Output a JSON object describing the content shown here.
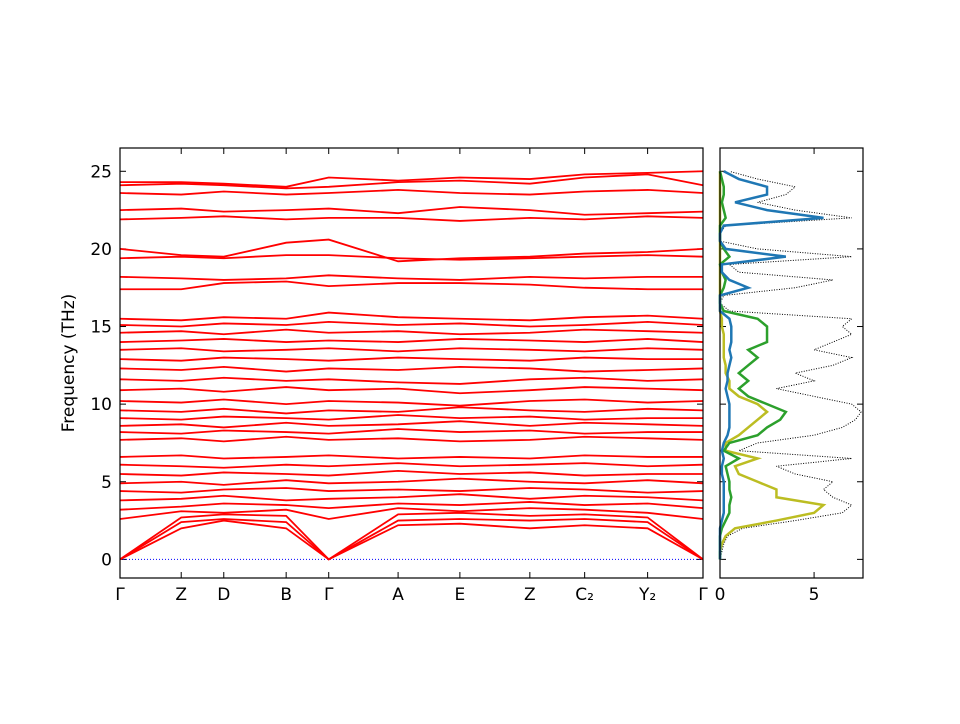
{
  "chart_data": [
    {
      "type": "band",
      "ylabel": "Frequency (THz)",
      "x": [
        0,
        0.105,
        0.178,
        0.285,
        0.358,
        0.477,
        0.583,
        0.703,
        0.797,
        0.905,
        1.0
      ],
      "xlim": [
        0,
        1.0
      ],
      "xticks": [
        {
          "value": 0,
          "label": "Γ"
        },
        {
          "value": 0.105,
          "label": "Z"
        },
        {
          "value": 0.178,
          "label": "D"
        },
        {
          "value": 0.285,
          "label": "B"
        },
        {
          "value": 0.358,
          "label": "Γ"
        },
        {
          "value": 0.477,
          "label": "A"
        },
        {
          "value": 0.583,
          "label": "E"
        },
        {
          "value": 0.703,
          "label": "Z"
        },
        {
          "value": 0.797,
          "label": "C₂"
        },
        {
          "value": 0.905,
          "label": "Y₂"
        },
        {
          "value": 1.0,
          "label": "Γ"
        }
      ],
      "ylim": [
        -1.2,
        26.5
      ],
      "yticks": [
        0,
        5,
        10,
        15,
        20,
        25
      ],
      "zero_line_color": "#0000ff",
      "series": [
        {
          "color": "#ff0000",
          "values": [
            0,
            2.0,
            2.5,
            2.0,
            0,
            2.2,
            2.3,
            2.0,
            2.2,
            2.0,
            0
          ]
        },
        {
          "color": "#ff0000",
          "values": [
            0,
            2.4,
            2.6,
            2.4,
            0,
            2.5,
            2.6,
            2.5,
            2.6,
            2.4,
            0
          ]
        },
        {
          "color": "#ff0000",
          "values": [
            0,
            2.7,
            2.9,
            2.8,
            0,
            2.9,
            3.0,
            2.8,
            2.9,
            2.7,
            0
          ]
        },
        {
          "color": "#ff0000",
          "values": [
            2.6,
            3.1,
            3.0,
            3.2,
            2.6,
            3.3,
            3.1,
            3.3,
            3.2,
            3.0,
            2.6
          ]
        },
        {
          "color": "#ff0000",
          "values": [
            3.2,
            3.4,
            3.6,
            3.5,
            3.3,
            3.6,
            3.5,
            3.7,
            3.5,
            3.6,
            3.3
          ]
        },
        {
          "color": "#ff0000",
          "values": [
            3.8,
            3.9,
            4.1,
            3.8,
            3.9,
            4.0,
            4.2,
            3.9,
            4.1,
            4.0,
            3.8
          ]
        },
        {
          "color": "#ff0000",
          "values": [
            4.4,
            4.3,
            4.5,
            4.6,
            4.4,
            4.5,
            4.4,
            4.6,
            4.5,
            4.3,
            4.4
          ]
        },
        {
          "color": "#ff0000",
          "values": [
            4.9,
            5.0,
            4.8,
            5.1,
            4.9,
            5.0,
            5.2,
            5.0,
            4.9,
            5.1,
            4.9
          ]
        },
        {
          "color": "#ff0000",
          "values": [
            5.5,
            5.4,
            5.6,
            5.5,
            5.4,
            5.7,
            5.5,
            5.6,
            5.4,
            5.5,
            5.5
          ]
        },
        {
          "color": "#ff0000",
          "values": [
            6.1,
            6.0,
            5.9,
            6.1,
            6.0,
            6.2,
            6.0,
            6.1,
            6.2,
            6.0,
            6.1
          ]
        },
        {
          "color": "#ff0000",
          "values": [
            6.6,
            6.7,
            6.5,
            6.6,
            6.7,
            6.5,
            6.6,
            6.5,
            6.7,
            6.6,
            6.6
          ]
        },
        {
          "color": "#ff0000",
          "values": [
            7.7,
            7.8,
            7.6,
            7.9,
            7.7,
            7.8,
            7.6,
            7.7,
            7.9,
            7.8,
            7.7
          ]
        },
        {
          "color": "#ff0000",
          "values": [
            8.2,
            8.1,
            8.3,
            8.2,
            8.1,
            8.4,
            8.2,
            8.3,
            8.1,
            8.2,
            8.2
          ]
        },
        {
          "color": "#ff0000",
          "values": [
            8.6,
            8.7,
            8.5,
            8.8,
            8.6,
            8.7,
            8.9,
            8.6,
            8.8,
            8.7,
            8.6
          ]
        },
        {
          "color": "#ff0000",
          "values": [
            9.1,
            9.0,
            9.2,
            9.1,
            9.0,
            9.3,
            9.1,
            9.2,
            9.0,
            9.1,
            9.1
          ]
        },
        {
          "color": "#ff0000",
          "values": [
            9.6,
            9.5,
            9.7,
            9.4,
            9.6,
            9.5,
            9.8,
            9.6,
            9.5,
            9.7,
            9.6
          ]
        },
        {
          "color": "#ff0000",
          "values": [
            10.2,
            10.1,
            10.3,
            10.0,
            10.2,
            10.1,
            9.9,
            10.2,
            10.3,
            10.1,
            10.2
          ]
        },
        {
          "color": "#ff0000",
          "values": [
            10.9,
            11.0,
            10.8,
            11.1,
            10.9,
            11.0,
            10.7,
            10.9,
            11.1,
            11.0,
            10.9
          ]
        },
        {
          "color": "#ff0000",
          "values": [
            11.6,
            11.5,
            11.7,
            11.5,
            11.6,
            11.4,
            11.3,
            11.6,
            11.7,
            11.5,
            11.6
          ]
        },
        {
          "color": "#ff0000",
          "values": [
            12.3,
            12.2,
            12.4,
            12.1,
            12.3,
            12.2,
            12.4,
            12.3,
            12.1,
            12.2,
            12.3
          ]
        },
        {
          "color": "#ff0000",
          "values": [
            12.9,
            12.8,
            13.0,
            12.9,
            12.8,
            13.0,
            12.9,
            12.8,
            13.0,
            12.9,
            12.9
          ]
        },
        {
          "color": "#ff0000",
          "values": [
            13.5,
            13.6,
            13.4,
            13.5,
            13.6,
            13.4,
            13.6,
            13.5,
            13.4,
            13.6,
            13.5
          ]
        },
        {
          "color": "#ff0000",
          "values": [
            14.0,
            14.1,
            14.2,
            14.0,
            14.1,
            14.0,
            14.2,
            14.1,
            14.0,
            14.2,
            14.0
          ]
        },
        {
          "color": "#ff0000",
          "values": [
            14.6,
            14.7,
            14.5,
            14.8,
            14.6,
            14.7,
            14.5,
            14.6,
            14.8,
            14.7,
            14.6
          ]
        },
        {
          "color": "#ff0000",
          "values": [
            15.1,
            15.0,
            15.2,
            15.1,
            15.3,
            15.1,
            15.2,
            15.0,
            15.1,
            15.3,
            15.1
          ]
        },
        {
          "color": "#ff0000",
          "values": [
            15.5,
            15.4,
            15.6,
            15.5,
            15.9,
            15.6,
            15.5,
            15.4,
            15.6,
            15.7,
            15.5
          ]
        },
        {
          "color": "#ff0000",
          "values": [
            17.4,
            17.4,
            17.8,
            17.9,
            17.6,
            17.8,
            17.8,
            17.7,
            17.5,
            17.4,
            17.4
          ]
        },
        {
          "color": "#ff0000",
          "values": [
            18.2,
            18.1,
            18.0,
            18.1,
            18.3,
            18.1,
            18.0,
            18.2,
            18.1,
            18.2,
            18.2
          ]
        },
        {
          "color": "#ff0000",
          "values": [
            19.4,
            19.5,
            19.4,
            19.6,
            19.6,
            19.4,
            19.3,
            19.4,
            19.5,
            19.6,
            19.5
          ]
        },
        {
          "color": "#ff0000",
          "values": [
            20.0,
            19.6,
            19.5,
            20.4,
            20.6,
            19.2,
            19.4,
            19.5,
            19.7,
            19.8,
            20.0
          ]
        },
        {
          "color": "#ff0000",
          "values": [
            21.9,
            22.0,
            22.1,
            21.9,
            22.0,
            22.0,
            21.8,
            22.0,
            21.9,
            22.1,
            22.0
          ]
        },
        {
          "color": "#ff0000",
          "values": [
            22.5,
            22.6,
            22.4,
            22.5,
            22.6,
            22.3,
            22.7,
            22.5,
            22.2,
            22.3,
            22.4
          ]
        },
        {
          "color": "#ff0000",
          "values": [
            23.6,
            23.5,
            23.7,
            23.5,
            23.6,
            23.8,
            23.6,
            23.5,
            23.7,
            23.8,
            23.6
          ]
        },
        {
          "color": "#ff0000",
          "values": [
            24.1,
            24.2,
            24.1,
            23.9,
            24.0,
            24.3,
            24.4,
            24.2,
            24.6,
            24.8,
            24.1
          ]
        },
        {
          "color": "#ff0000",
          "values": [
            24.3,
            24.3,
            24.2,
            24.0,
            24.6,
            24.4,
            24.6,
            24.5,
            24.8,
            24.9,
            25.0
          ]
        }
      ]
    },
    {
      "type": "dos",
      "frequencies": [
        0,
        0.5,
        1,
        1.5,
        2,
        2.5,
        3,
        3.5,
        4,
        4.5,
        5,
        5.5,
        6,
        6.5,
        7,
        7.5,
        8,
        8.5,
        9,
        9.5,
        10,
        10.5,
        11,
        11.5,
        12,
        12.5,
        13,
        13.5,
        14,
        14.5,
        15,
        15.5,
        16,
        16.5,
        17,
        17.5,
        18,
        18.5,
        19,
        19.5,
        20,
        20.5,
        21,
        21.5,
        22,
        22.5,
        23,
        23.5,
        24,
        24.5,
        25
      ],
      "xlim": [
        0,
        7.6
      ],
      "xticks": [
        0,
        5
      ],
      "ylim": [
        -1.2,
        26.5
      ],
      "yticks": [
        0,
        5,
        10,
        15,
        20,
        25
      ],
      "series": [
        {
          "color": "#000000",
          "values": [
            0,
            0.1,
            0.2,
            0.4,
            1.2,
            4,
            6.5,
            7,
            6,
            5.5,
            6,
            4,
            3,
            7,
            1,
            2,
            5,
            6.5,
            7.2,
            7.5,
            7,
            5,
            3,
            5,
            4,
            6,
            7,
            5,
            6,
            7,
            6.5,
            7,
            0.5,
            0,
            0.2,
            4,
            6,
            1,
            0.5,
            7,
            2,
            0,
            0,
            0.3,
            7,
            4,
            2,
            3.5,
            4,
            2,
            0.5
          ]
        },
        {
          "color": "#bcbd22",
          "values": [
            0,
            0,
            0.1,
            0.3,
            0.8,
            3,
            5,
            5.5,
            3,
            3,
            2,
            1,
            0.8,
            2,
            0.3,
            0.3,
            1,
            1.5,
            2,
            2.5,
            2,
            1,
            0.5,
            0.5,
            0.3,
            0.3,
            0.2,
            0.2,
            0.2,
            0.2,
            0.1,
            0.1,
            0,
            0,
            0,
            0,
            0,
            0,
            0,
            0,
            0,
            0,
            0,
            0,
            0,
            0,
            0,
            0,
            0,
            0,
            0
          ]
        },
        {
          "color": "#2ca02c",
          "values": [
            0,
            0,
            0,
            0,
            0.1,
            0.3,
            0.5,
            0.5,
            0.6,
            0.5,
            0.5,
            0.4,
            0.3,
            1,
            0.2,
            0.5,
            2,
            2.5,
            3.2,
            3.5,
            2.5,
            1.5,
            1,
            1.5,
            1,
            1.5,
            2,
            1.5,
            2.5,
            2.5,
            2.5,
            2,
            0.2,
            0,
            0,
            0.2,
            0.3,
            0.1,
            0,
            0.5,
            0.2,
            0,
            0,
            0,
            0.3,
            0.2,
            0.1,
            0.2,
            0.2,
            0.1,
            0
          ]
        },
        {
          "color": "#1f77b4",
          "values": [
            0,
            0,
            0,
            0,
            0,
            0.1,
            0.2,
            0.2,
            0.2,
            0.2,
            0.2,
            0.1,
            0.1,
            0.2,
            0.1,
            0.2,
            0.4,
            0.5,
            0.5,
            0.5,
            0.5,
            0.4,
            0.3,
            0.4,
            0.4,
            0.5,
            0.6,
            0.5,
            0.6,
            0.6,
            0.6,
            0.5,
            0,
            0,
            0,
            1.5,
            0.5,
            0.1,
            0.1,
            3.5,
            0.3,
            0,
            0,
            0.2,
            5.5,
            2.5,
            0.8,
            2.5,
            2.5,
            1,
            0.2
          ]
        }
      ]
    }
  ]
}
